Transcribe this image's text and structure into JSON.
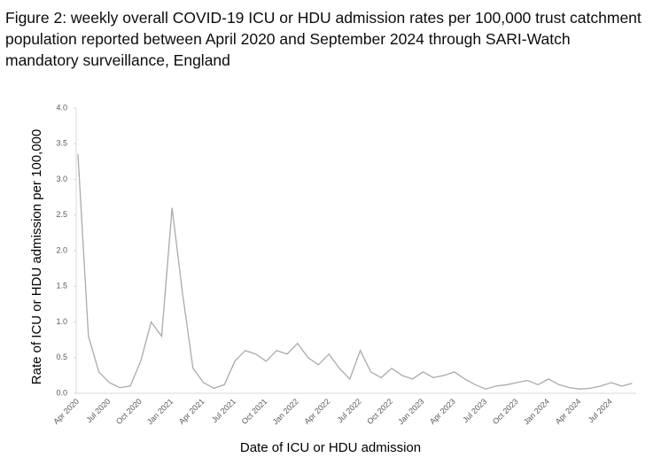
{
  "chart_data": {
    "type": "line",
    "title": "Figure 2: weekly overall COVID-19 ICU or HDU admission rates per 100,000 trust catchment population reported between April 2020 and September 2024 through SARI-Watch mandatory surveillance, England",
    "x_label": "Date of ICU or HDU admission",
    "y_label": "Rate of ICU or HDU admission per 100,000",
    "categories": [
      "Apr 2020",
      null,
      null,
      "Jul 2020",
      null,
      null,
      "Oct 2020",
      null,
      null,
      "Jan 2021",
      null,
      null,
      "Apr 2021",
      null,
      null,
      "Jul 2021",
      null,
      null,
      "Oct 2021",
      null,
      null,
      "Jan 2022",
      null,
      null,
      "Apr 2022",
      null,
      null,
      "Jul 2022",
      null,
      null,
      "Oct 2022",
      null,
      null,
      "Jan 2023",
      null,
      null,
      "Apr 2023",
      null,
      null,
      "Jul 2023",
      null,
      null,
      "Oct 2023",
      null,
      null,
      "Jan 2024",
      null,
      null,
      "Apr 2024",
      null,
      null,
      "Jul 2024",
      null,
      null
    ],
    "values": [
      3.35,
      0.8,
      0.3,
      0.15,
      0.08,
      0.1,
      0.45,
      1.0,
      0.8,
      2.6,
      1.4,
      0.35,
      0.15,
      0.07,
      0.12,
      0.45,
      0.6,
      0.55,
      0.45,
      0.6,
      0.55,
      0.7,
      0.5,
      0.4,
      0.55,
      0.35,
      0.2,
      0.6,
      0.3,
      0.22,
      0.35,
      0.25,
      0.2,
      0.3,
      0.22,
      0.25,
      0.3,
      0.2,
      0.12,
      0.06,
      0.1,
      0.12,
      0.15,
      0.18,
      0.12,
      0.2,
      0.12,
      0.08,
      0.06,
      0.07,
      0.1,
      0.15,
      0.1,
      0.14
    ],
    "color": "#aaaaaa",
    "ylim": [
      0,
      4
    ],
    "yticks": [
      {
        "value": 0,
        "label": "0.0"
      },
      {
        "value": 0.5,
        "label": "0.5"
      },
      {
        "value": 1,
        "label": "1.0"
      },
      {
        "value": 1.5,
        "label": "1.5"
      },
      {
        "value": 2,
        "label": "2.0"
      },
      {
        "value": 2.5,
        "label": "2.5"
      },
      {
        "value": 3,
        "label": "3.0"
      },
      {
        "value": 3.5,
        "label": "3.5"
      },
      {
        "value": 4,
        "label": "4.0"
      }
    ],
    "grid": false
  }
}
